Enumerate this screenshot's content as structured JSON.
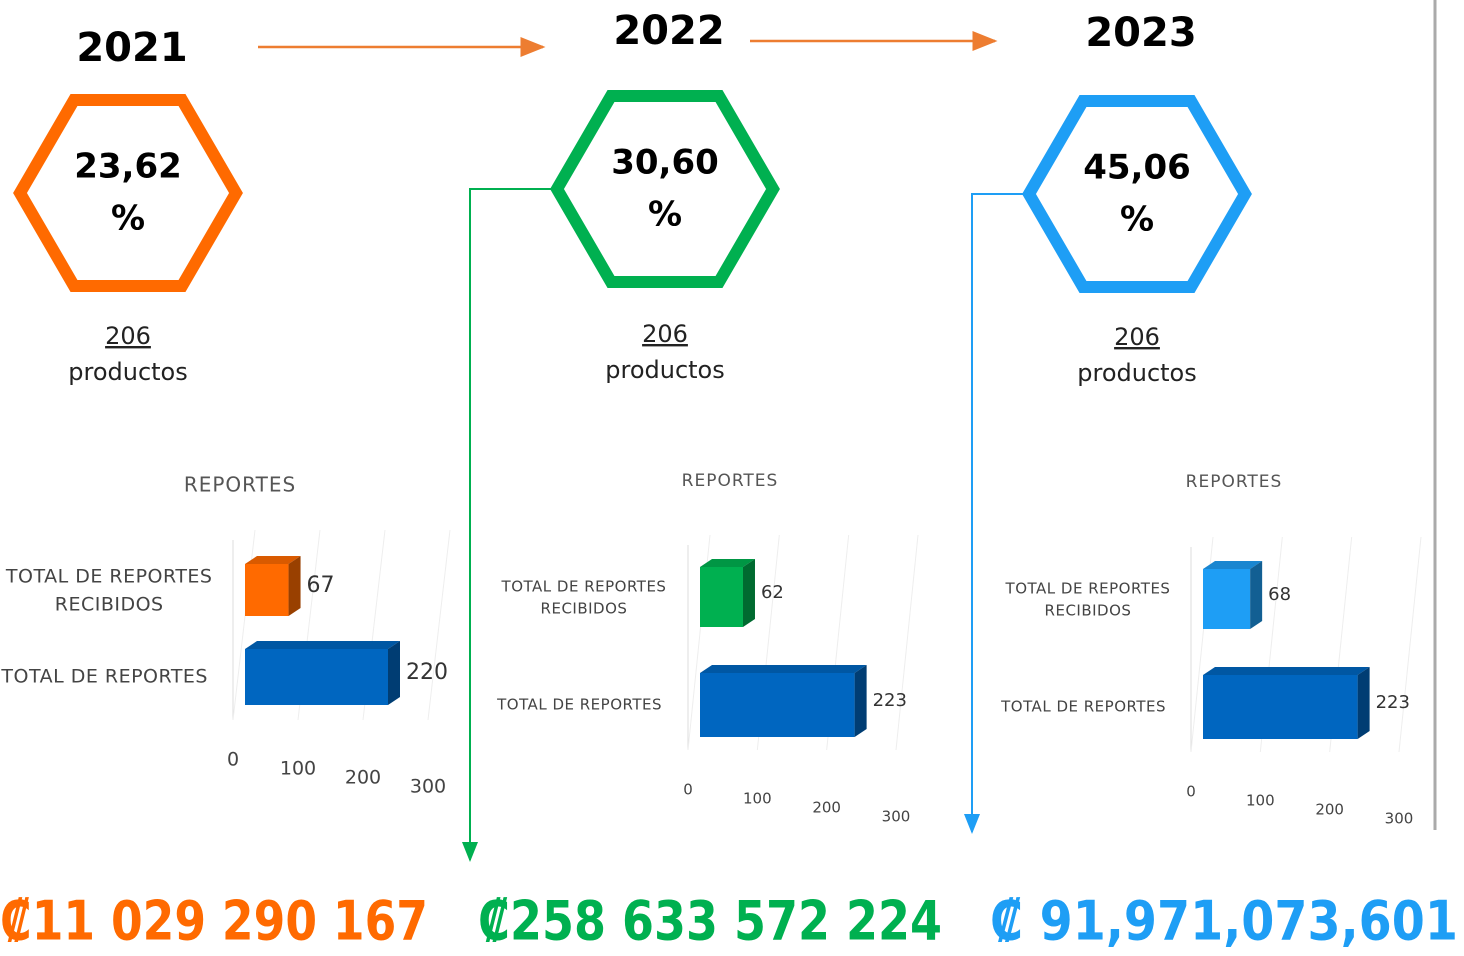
{
  "panels": [
    {
      "year": "2021",
      "percent": "23,62",
      "unit": "%",
      "count": "206",
      "count_label": "productos",
      "amount": "₡11 029 290 167",
      "color": "#ff6a00"
    },
    {
      "year": "2022",
      "percent": "30,60",
      "unit": "%",
      "count": "206",
      "count_label": "productos",
      "amount": "₡258 633 572 224",
      "color": "#00b050"
    },
    {
      "year": "2023",
      "percent": "45,06",
      "unit": "%",
      "count": "206",
      "count_label": "productos",
      "amount": "₡ 91,971,073,601",
      "color": "#1e9ef5"
    }
  ],
  "chart_data": [
    {
      "type": "bar",
      "title": "REPORTES",
      "categories": [
        "TOTAL DE REPORTES RECIBIDOS",
        "TOTAL DE REPORTES"
      ],
      "values": [
        67,
        220
      ],
      "colors": [
        "#ff6a00",
        "#0066c0"
      ],
      "xlim": [
        0,
        300
      ],
      "xticks": [
        0,
        100,
        200,
        300
      ]
    },
    {
      "type": "bar",
      "title": "REPORTES",
      "categories": [
        "TOTAL DE REPORTES RECIBIDOS",
        "TOTAL DE REPORTES"
      ],
      "values": [
        62,
        223
      ],
      "colors": [
        "#00b050",
        "#0066c0"
      ],
      "xlim": [
        0,
        300
      ],
      "xticks": [
        0,
        100,
        200,
        300
      ]
    },
    {
      "type": "bar",
      "title": "REPORTES",
      "categories": [
        "TOTAL DE REPORTES RECIBIDOS",
        "TOTAL DE REPORTES"
      ],
      "values": [
        68,
        223
      ],
      "colors": [
        "#1e9ef5",
        "#0066c0"
      ],
      "xlim": [
        0,
        300
      ],
      "xticks": [
        0,
        100,
        200,
        300
      ]
    }
  ]
}
